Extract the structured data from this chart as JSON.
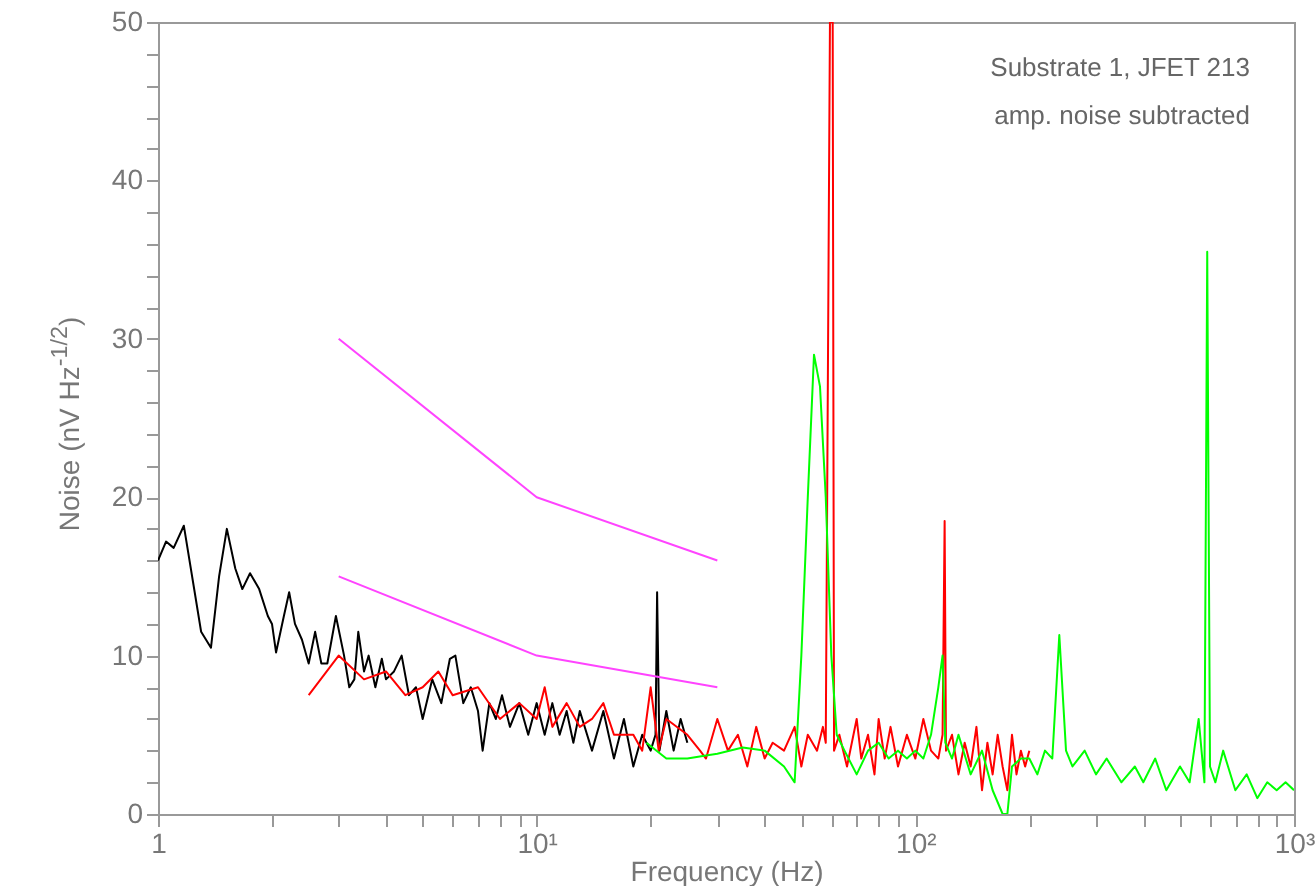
{
  "chart_data": {
    "type": "line",
    "xlabel": "Frequency (Hz)",
    "ylabel": "Noise (nV Hz$^{-1/2}$)",
    "log": "x",
    "grid": false,
    "xlim": [
      1,
      1000
    ],
    "xticks": [
      {
        "value": 1,
        "label": "1"
      },
      {
        "value": 2,
        "label": null
      },
      {
        "value": 3,
        "label": null
      },
      {
        "value": 4,
        "label": null
      },
      {
        "value": 5,
        "label": null
      },
      {
        "value": 6,
        "label": null
      },
      {
        "value": 7,
        "label": null
      },
      {
        "value": 8,
        "label": null
      },
      {
        "value": 9,
        "label": null
      },
      {
        "value": 10,
        "label": "10¹"
      },
      {
        "value": 20,
        "label": null
      },
      {
        "value": 30,
        "label": null
      },
      {
        "value": 40,
        "label": null
      },
      {
        "value": 50,
        "label": null
      },
      {
        "value": 60,
        "label": null
      },
      {
        "value": 70,
        "label": null
      },
      {
        "value": 80,
        "label": null
      },
      {
        "value": 90,
        "label": null
      },
      {
        "value": 100,
        "label": "10²"
      },
      {
        "value": 200,
        "label": null
      },
      {
        "value": 300,
        "label": null
      },
      {
        "value": 400,
        "label": null
      },
      {
        "value": 500,
        "label": null
      },
      {
        "value": 600,
        "label": null
      },
      {
        "value": 700,
        "label": null
      },
      {
        "value": 800,
        "label": null
      },
      {
        "value": 900,
        "label": null
      },
      {
        "value": 1000,
        "label": "10³"
      }
    ],
    "ylim": [
      0,
      50
    ],
    "yticks": [
      0,
      {
        "value": 2,
        "label": null
      },
      {
        "value": 4,
        "label": null
      },
      {
        "value": 6,
        "label": null
      },
      {
        "value": 8,
        "label": null
      },
      10,
      {
        "value": 12,
        "label": null
      },
      {
        "value": 14,
        "label": null
      },
      {
        "value": 16,
        "label": null
      },
      {
        "value": 18,
        "label": null
      },
      20,
      {
        "value": 22,
        "label": null
      },
      {
        "value": 24,
        "label": null
      },
      {
        "value": 26,
        "label": null
      },
      {
        "value": 28,
        "label": null
      },
      30,
      {
        "value": 32,
        "label": null
      },
      {
        "value": 34,
        "label": null
      },
      {
        "value": 36,
        "label": null
      },
      {
        "value": 38,
        "label": null
      },
      40,
      {
        "value": 42,
        "label": null
      },
      {
        "value": 44,
        "label": null
      },
      {
        "value": 46,
        "label": null
      },
      {
        "value": 48,
        "label": null
      },
      50
    ],
    "annotations": [
      "Substrate 1, JFET 213",
      "amp. noise subtracted"
    ],
    "series": [
      {
        "color": "#000000",
        "x": [
          1,
          1.05,
          1.1,
          1.17,
          1.25,
          1.3,
          1.38,
          1.45,
          1.52,
          1.6,
          1.67,
          1.75,
          1.85,
          1.95,
          2.0,
          2.05,
          2.15,
          2.22,
          2.3,
          2.4,
          2.5,
          2.6,
          2.7,
          2.8,
          2.95,
          3.1,
          3.2,
          3.3,
          3.38,
          3.5,
          3.6,
          3.75,
          3.9,
          4.0,
          4.2,
          4.4,
          4.6,
          4.8,
          5.0,
          5.3,
          5.6,
          5.9,
          6.1,
          6.4,
          6.7,
          7.0,
          7.2,
          7.5,
          7.8,
          8.1,
          8.5,
          9,
          9.5,
          10,
          10.5,
          11,
          11.5,
          12,
          12.5,
          13,
          14,
          15,
          16,
          17,
          18,
          19,
          20,
          20.6,
          20.8,
          21.1,
          22,
          23,
          24,
          25
        ],
        "values": [
          16,
          17.2,
          16.8,
          18.2,
          14,
          11.5,
          10.5,
          15,
          18,
          15.5,
          14.2,
          15.2,
          14.2,
          12.5,
          12,
          10.2,
          12.5,
          14,
          12,
          11,
          9.5,
          11.5,
          9.5,
          9.5,
          12.5,
          10,
          8,
          8.5,
          11.5,
          9,
          10,
          8,
          9.8,
          8.5,
          9,
          10,
          7.5,
          8,
          6,
          8.5,
          7,
          9.8,
          10,
          7,
          8,
          6.5,
          4,
          7,
          6,
          7.5,
          5.5,
          7,
          5,
          7,
          5,
          7,
          5,
          6.5,
          4.5,
          6.5,
          4,
          6.5,
          3.5,
          6,
          3,
          5,
          4,
          5,
          14,
          4,
          6.5,
          4,
          6,
          4.5
        ]
      },
      {
        "color": "#ff0000",
        "x": [
          2.5,
          3,
          3.5,
          4,
          4.5,
          5,
          5.5,
          6,
          7,
          8,
          9,
          10,
          10.5,
          11,
          12,
          13,
          14,
          15,
          16,
          18,
          19,
          20,
          21,
          22,
          25,
          27,
          28,
          30,
          32,
          34,
          36,
          38,
          40,
          42,
          45,
          48,
          50,
          52,
          55,
          57,
          58,
          59.5,
          60.5,
          61,
          63,
          66,
          70,
          72,
          75,
          78,
          80,
          83,
          86,
          90,
          95,
          100,
          105,
          110,
          115,
          118,
          119.5,
          120.5,
          125,
          130,
          135,
          140,
          145,
          150,
          155,
          160,
          165,
          170,
          175,
          180,
          185,
          190,
          195,
          200
        ],
        "values": [
          7.5,
          10,
          8.5,
          9,
          7.5,
          8,
          9,
          7.5,
          8,
          6,
          7,
          6,
          8,
          5.5,
          7,
          5.5,
          6,
          7,
          5,
          5,
          4,
          8,
          4,
          6,
          5,
          4,
          3.5,
          6,
          4,
          5,
          3,
          5.5,
          3.5,
          4.5,
          4,
          5.5,
          3,
          5,
          4,
          5.5,
          4.5,
          50,
          50,
          4,
          5,
          3,
          6,
          3.5,
          5,
          2.5,
          6,
          3.5,
          5.5,
          3,
          5,
          3.5,
          6,
          4,
          3.5,
          5,
          18.5,
          4,
          5,
          2.5,
          4.5,
          3,
          5.5,
          1.5,
          4.5,
          2.5,
          5,
          3,
          1.5,
          5,
          2.5,
          4,
          3,
          4
        ]
      },
      {
        "color": "#00ff00",
        "x": [
          19.5,
          22,
          25,
          28,
          30,
          35,
          40,
          45,
          48,
          50,
          52,
          54,
          56,
          58,
          60,
          62,
          65,
          70,
          75,
          80,
          85,
          90,
          95,
          100,
          105,
          110,
          115,
          118,
          120,
          125,
          130,
          140,
          150,
          160,
          170,
          175,
          180,
          190,
          200,
          210,
          220,
          230,
          240,
          250,
          260,
          280,
          300,
          320,
          350,
          380,
          400,
          430,
          460,
          500,
          530,
          560,
          580,
          590,
          600,
          620,
          650,
          700,
          750,
          800,
          850,
          900,
          950,
          1000
        ],
        "values": [
          4.5,
          3.5,
          3.5,
          3.7,
          3.8,
          4.2,
          4,
          3,
          2,
          10,
          20,
          29,
          27,
          20,
          10,
          5,
          4,
          2.5,
          4,
          4.5,
          3.5,
          4,
          3.5,
          4,
          3.5,
          5,
          8,
          10,
          4.5,
          3.5,
          5,
          2.5,
          4,
          1.5,
          0,
          0,
          3,
          3.5,
          3.5,
          2.5,
          4,
          3.5,
          11.3,
          4,
          3,
          4,
          2.5,
          3.5,
          2,
          3,
          2,
          3.5,
          1.5,
          3,
          2,
          6,
          2,
          35.5,
          3,
          2,
          4,
          1.5,
          2.5,
          1,
          2,
          1.5,
          2,
          1.5
        ]
      },
      {
        "color": "#ff44ff",
        "x": [
          3,
          10,
          30
        ],
        "values": [
          30,
          20,
          16
        ]
      },
      {
        "color": "#ff44ff",
        "x": [
          3,
          10,
          30
        ],
        "values": [
          15,
          10,
          8
        ]
      }
    ]
  }
}
